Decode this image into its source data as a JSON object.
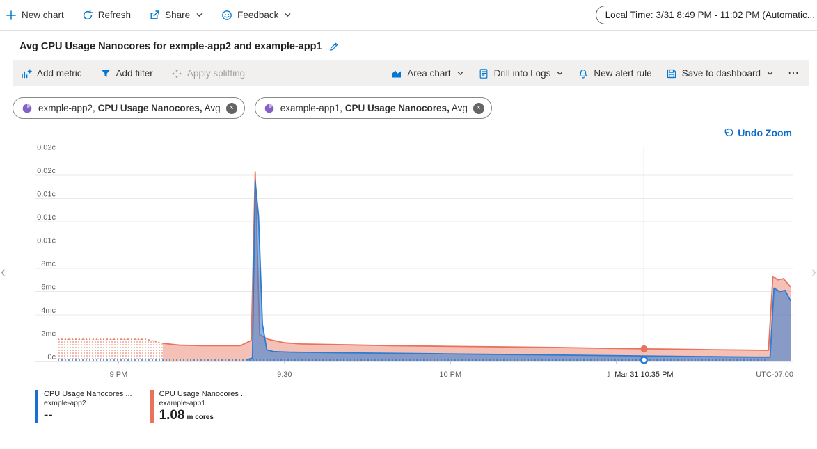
{
  "topbar": {
    "new_chart": "New chart",
    "refresh": "Refresh",
    "share": "Share",
    "feedback": "Feedback",
    "time_range": "Local Time: 3/31 8:49 PM - 11:02 PM (Automatic..."
  },
  "title": {
    "text": "Avg CPU Usage Nanocores for exmple-app2 and example-app1"
  },
  "toolbar": {
    "add_metric": "Add metric",
    "add_filter": "Add filter",
    "apply_splitting": "Apply splitting",
    "chart_type": "Area chart",
    "drill_into_logs": "Drill into Logs",
    "new_alert_rule": "New alert rule",
    "save_to_dashboard": "Save to dashboard",
    "more": "⋯"
  },
  "pills": [
    {
      "resource": "exmple-app2,",
      "metric": "CPU Usage Nanocores,",
      "aggregation": "Avg"
    },
    {
      "resource": "example-app1,",
      "metric": "CPU Usage Nanocores,",
      "aggregation": "Avg"
    }
  ],
  "undo_zoom": "Undo Zoom",
  "chart_data": {
    "type": "area",
    "title": "Avg CPU Usage Nanocores for exmple-app2 and example-app1",
    "value_unit_scale": "millicores",
    "x_axis": {
      "start_label": "8:49 PM",
      "end_label": "11:02 PM",
      "duration_minutes": 133,
      "timezone_label": "UTC-07:00",
      "ticks": [
        {
          "t": 11,
          "label": "9 PM"
        },
        {
          "t": 41,
          "label": "9:30"
        },
        {
          "t": 71,
          "label": "10 PM"
        },
        {
          "t": 101,
          "label": "10:30"
        }
      ]
    },
    "y_axis": {
      "min": 0,
      "max": 18.8,
      "grid": true,
      "ticks": [
        {
          "v": 0,
          "label": "0c"
        },
        {
          "v": 2,
          "label": "2mc"
        },
        {
          "v": 4,
          "label": "4mc"
        },
        {
          "v": 6,
          "label": "6mc"
        },
        {
          "v": 8,
          "label": "8mc"
        },
        {
          "v": 10,
          "label": "0.01c"
        },
        {
          "v": 12,
          "label": "0.01c"
        },
        {
          "v": 14,
          "label": "0.01c"
        },
        {
          "v": 16,
          "label": "0.02c"
        },
        {
          "v": 18,
          "label": "0.02c"
        }
      ]
    },
    "crosshair": {
      "t": 106,
      "label": "Mar 31 10:35 PM"
    },
    "series": [
      {
        "name": "CPU Usage Nanocores (Avg), example-app1",
        "color": "#e8735c",
        "fill": "rgba(232,115,92,0.45)",
        "points": [
          [
            19,
            1.55
          ],
          [
            22,
            1.4
          ],
          [
            26,
            1.35
          ],
          [
            30,
            1.35
          ],
          [
            33,
            1.35
          ],
          [
            35,
            1.8
          ],
          [
            35.7,
            16.3
          ],
          [
            36.5,
            2.3
          ],
          [
            38,
            1.9
          ],
          [
            41,
            1.6
          ],
          [
            44,
            1.5
          ],
          [
            50,
            1.45
          ],
          [
            55,
            1.4
          ],
          [
            60,
            1.35
          ],
          [
            70,
            1.3
          ],
          [
            80,
            1.25
          ],
          [
            90,
            1.2
          ],
          [
            100,
            1.12
          ],
          [
            106,
            1.08
          ],
          [
            112,
            1.05
          ],
          [
            120,
            1.0
          ],
          [
            126,
            0.97
          ],
          [
            128.5,
            0.95
          ],
          [
            129.3,
            7.3
          ],
          [
            130.2,
            7.0
          ],
          [
            131.2,
            7.1
          ],
          [
            132.5,
            6.4
          ]
        ],
        "dotted_region": {
          "points": [
            [
              0,
              1.9
            ],
            [
              16,
              1.9
            ],
            [
              19,
              1.55
            ]
          ]
        },
        "marker": {
          "t": 106,
          "v": 1.08,
          "style": "filled"
        }
      },
      {
        "name": "CPU Usage Nanocores (Avg), exmple-app2",
        "color": "#2b7cd3",
        "fill": "rgba(43,124,211,0.55)",
        "points": [
          [
            34,
            0.12
          ],
          [
            35.2,
            0.3
          ],
          [
            35.7,
            15.5
          ],
          [
            36.3,
            12.5
          ],
          [
            37,
            3.2
          ],
          [
            37.8,
            1.0
          ],
          [
            39,
            0.85
          ],
          [
            42,
            0.8
          ],
          [
            50,
            0.75
          ],
          [
            60,
            0.7
          ],
          [
            70,
            0.65
          ],
          [
            80,
            0.6
          ],
          [
            90,
            0.55
          ],
          [
            100,
            0.5
          ],
          [
            110,
            0.45
          ],
          [
            120,
            0.4
          ],
          [
            126,
            0.37
          ],
          [
            128.8,
            0.37
          ],
          [
            129.5,
            6.3
          ],
          [
            130.5,
            6.0
          ],
          [
            131.5,
            6.1
          ],
          [
            132.5,
            5.2
          ]
        ],
        "dashed_line": {
          "from": 0,
          "to": 128.5,
          "level": 0.12
        },
        "marker": {
          "t": 106,
          "v": 0.12,
          "style": "ring"
        }
      }
    ]
  },
  "legend": {
    "items": [
      {
        "metric": "CPU Usage Nanocores ...",
        "resource": "exmple-app2",
        "value": "--",
        "unit": "",
        "color": "#1a6fd4"
      },
      {
        "metric": "CPU Usage Nanocores ...",
        "resource": "example-app1",
        "value": "1.08",
        "unit": "m cores",
        "color": "#e8735c"
      }
    ]
  },
  "edges": {
    "left": "‹",
    "right": "›"
  }
}
